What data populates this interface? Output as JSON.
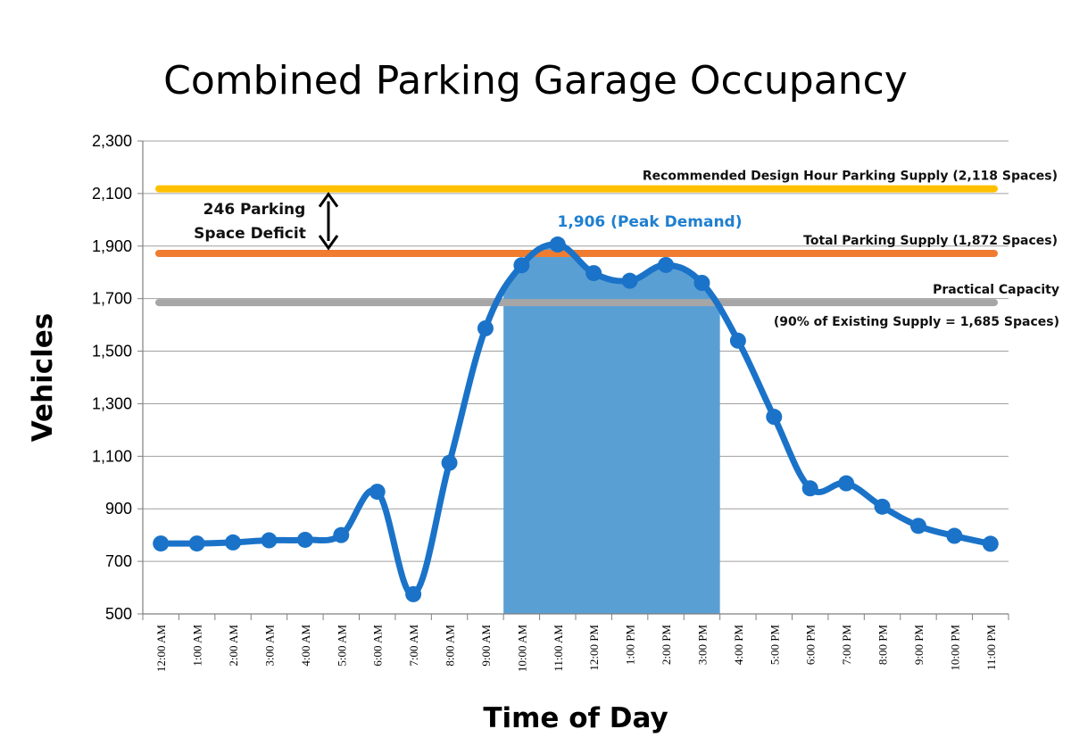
{
  "chart_data": {
    "type": "line",
    "title": "Combined Parking Garage Occupancy",
    "xlabel": "Time of Day",
    "ylabel": "Vehicles",
    "ylim": [
      500,
      2300
    ],
    "yticks": [
      500,
      700,
      900,
      1100,
      1300,
      1500,
      1700,
      1900,
      2100,
      2300
    ],
    "ytick_labels": [
      "500",
      "700",
      "900",
      "1,100",
      "1,300",
      "1,500",
      "1,700",
      "1,900",
      "2,100",
      "2,300"
    ],
    "grid": true,
    "categories": [
      "12:00 AM",
      "1:00 AM",
      "2:00 AM",
      "3:00 AM",
      "4:00 AM",
      "5:00 AM",
      "6:00 AM",
      "7:00 AM",
      "8:00 AM",
      "9:00 AM",
      "10:00 AM",
      "11:00 AM",
      "12:00 PM",
      "1:00 PM",
      "2:00 PM",
      "3:00 PM",
      "4:00 PM",
      "5:00 PM",
      "6:00 PM",
      "7:00 PM",
      "8:00 PM",
      "9:00 PM",
      "10:00 PM",
      "11:00 PM"
    ],
    "series": [
      {
        "values": [
          768,
          768,
          772,
          780,
          782,
          800,
          965,
          575,
          1075,
          1587,
          1827,
          1906,
          1797,
          1768,
          1828,
          1760,
          1540,
          1250,
          978,
          997,
          908,
          835,
          797,
          767
        ],
        "color": "#1a73c8"
      }
    ],
    "shaded_region": {
      "from": "9:30 AM",
      "to": "3:30 PM",
      "color": "#5a9fd4",
      "from_index": 9.5,
      "to_index": 15.5
    },
    "reference_lines": [
      {
        "label": "Recommended Design Hour Parking Supply (2,118 Spaces)",
        "value": 2118,
        "color": "#ffc000"
      },
      {
        "label": "Total Parking Supply (1,872 Spaces)",
        "value": 1872,
        "color": "#f07c30"
      },
      {
        "label": "Practical Capacity",
        "label2": "(90% of Existing Supply = 1,685 Spaces)",
        "value": 1685,
        "color": "#a6a6a6"
      }
    ],
    "annotations": {
      "peak": {
        "text": "1,906 (Peak Demand)",
        "color": "#1f7fd0"
      },
      "deficit": {
        "line1": "246 Parking",
        "line2": "Space Deficit"
      }
    }
  }
}
